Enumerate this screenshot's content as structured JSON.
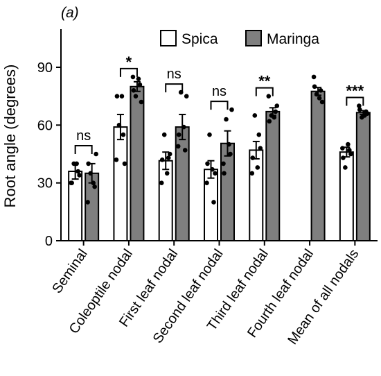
{
  "chart_data": {
    "type": "bar",
    "panel_label": "(a)",
    "ylabel": "Root angle (degrees)",
    "ylim": [
      0,
      110
    ],
    "yticks": [
      0,
      30,
      60,
      90
    ],
    "ytick_labels": [
      "0",
      "30",
      "60",
      "90"
    ],
    "categories": [
      "Seminal",
      "Coleoptile nodal",
      "First leaf nodal",
      "Second leaf nodal",
      "Third leaf nodal",
      "Fourth leaf nodal",
      "Mean of all nodals"
    ],
    "series": [
      {
        "name": "Spica",
        "color": "#ffffff",
        "values": [
          36,
          59,
          41.5,
          37,
          47,
          null,
          46
        ],
        "errors": [
          4,
          6.5,
          4.5,
          4.5,
          4.5,
          null,
          2.5
        ],
        "points": [
          [
            30,
            36,
            40,
            34,
            30,
            40
          ],
          [
            42,
            55,
            60,
            40,
            75,
            75
          ],
          [
            30,
            43,
            55,
            45,
            42,
            35
          ],
          [
            30,
            20,
            55,
            35,
            40,
            37
          ],
          [
            35,
            55,
            65,
            48,
            43,
            38
          ],
          [],
          [
            48,
            47,
            38,
            45,
            43,
            50
          ]
        ]
      },
      {
        "name": "Maringa",
        "color": "#7f7f7f",
        "values": [
          35,
          80,
          59,
          50.5,
          67,
          77.5,
          66.5
        ],
        "errors": [
          5,
          2.5,
          6.5,
          6.5,
          2,
          2,
          1
        ],
        "points": [
          [
            20,
            28,
            35,
            45,
            40,
            30
          ],
          [
            85,
            81,
            75,
            72,
            78,
            84
          ],
          [
            49,
            47,
            77,
            75,
            55,
            59
          ],
          [
            40,
            45,
            63,
            68,
            35,
            50
          ],
          [
            75,
            67,
            65,
            70,
            62,
            64
          ],
          [
            85,
            78,
            76,
            72,
            80,
            74
          ],
          [
            70,
            67,
            64,
            66,
            68,
            65
          ]
        ]
      }
    ],
    "significance": [
      "ns",
      "*",
      "ns",
      "ns",
      "**",
      "",
      "***"
    ],
    "legend_position": "top"
  }
}
